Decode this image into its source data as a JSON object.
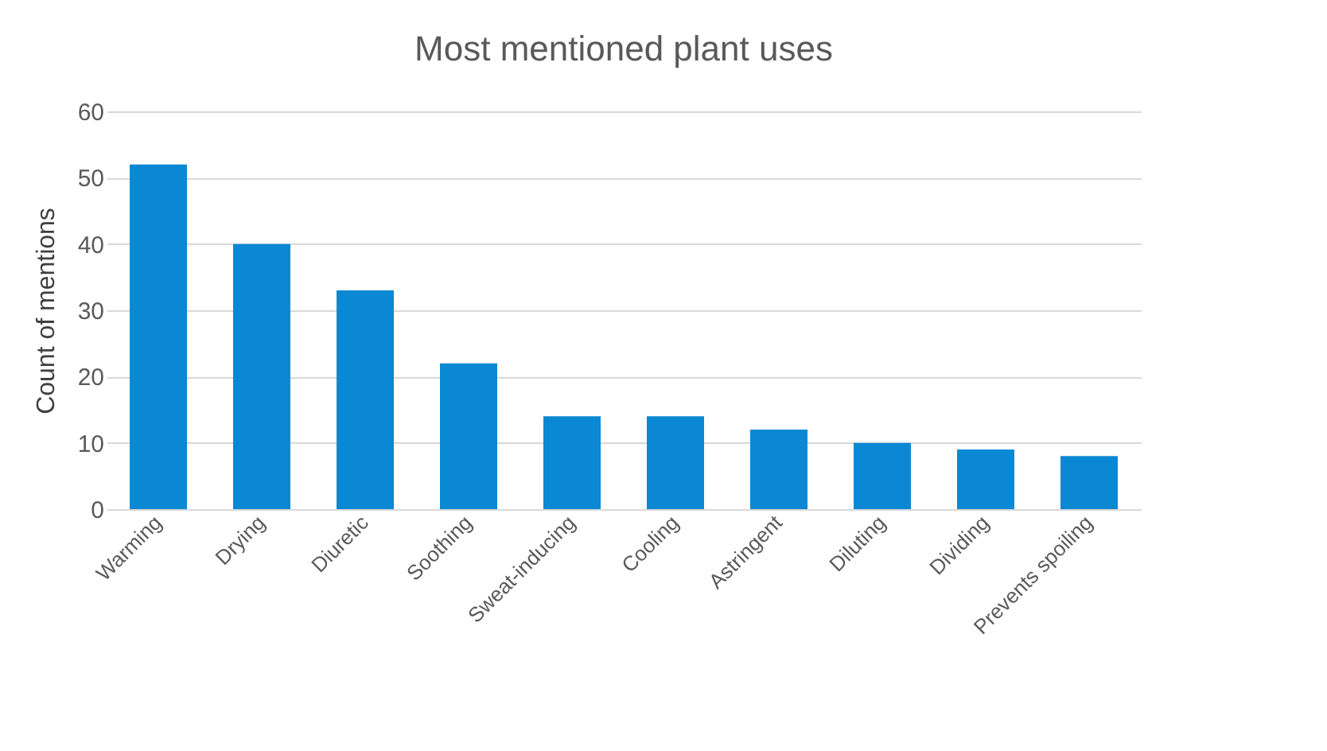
{
  "chart_data": {
    "type": "bar",
    "title": "Most mentioned plant uses",
    "ylabel": "Count of mentions",
    "categories": [
      "Warming",
      "Drying",
      "Diuretic",
      "Soothing",
      "Sweat-inducing",
      "Cooling",
      "Astringent",
      "Diluting",
      "Dividing",
      "Prevents spoiling"
    ],
    "values": [
      52,
      40,
      33,
      22,
      14,
      14,
      12,
      10,
      9,
      8
    ],
    "color": "#0a88d4",
    "ylim": [
      0,
      60
    ],
    "yticks": [
      0,
      10,
      20,
      30,
      40,
      50,
      60
    ],
    "grid": "y"
  }
}
